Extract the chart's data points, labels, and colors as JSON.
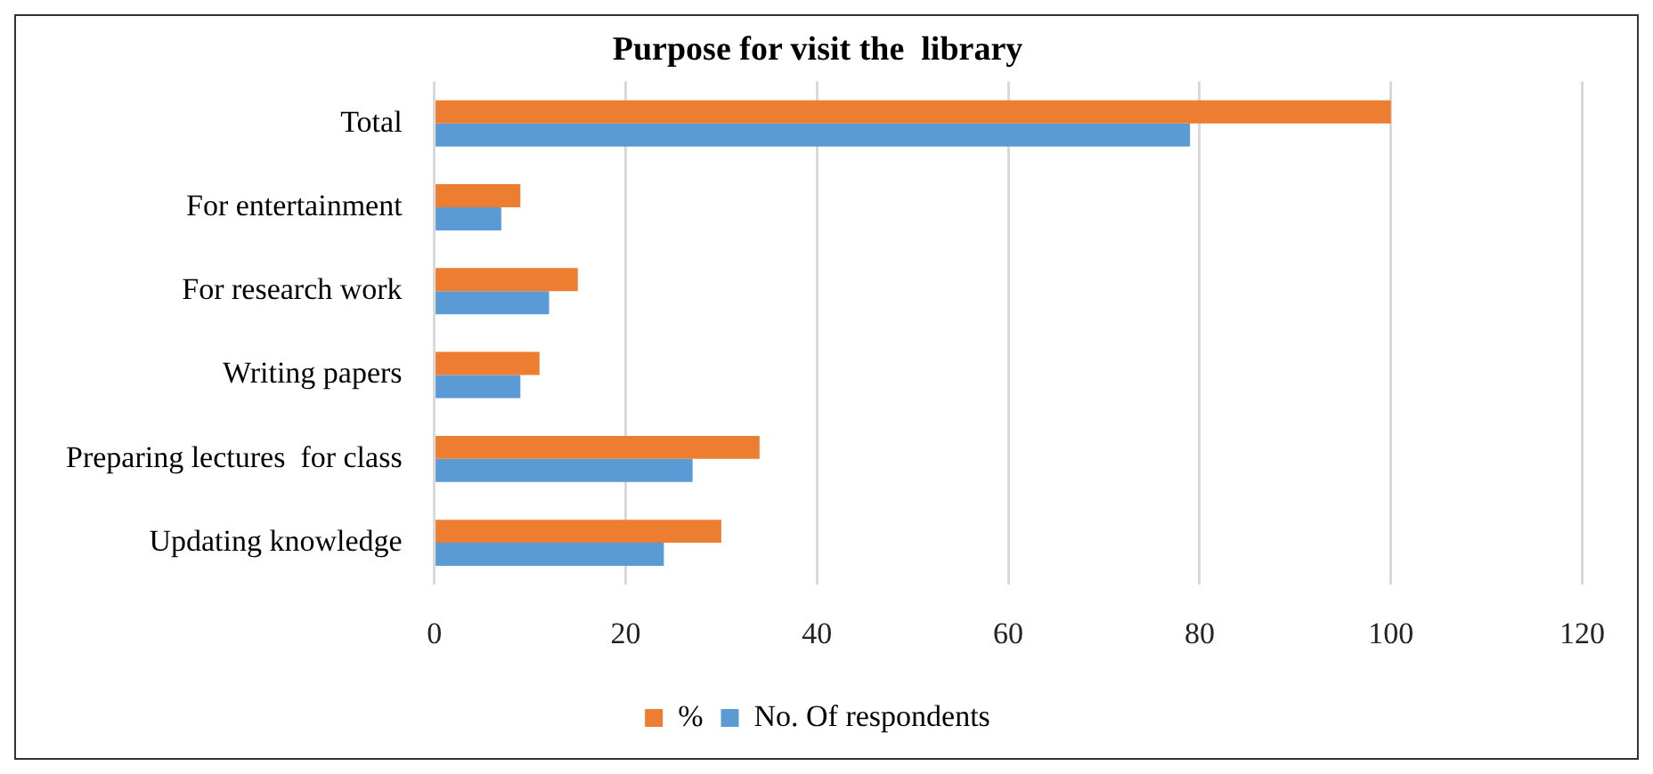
{
  "chart_data": {
    "type": "bar",
    "orientation": "horizontal",
    "title": "Purpose for visit the  library",
    "categories": [
      "Total",
      "For entertainment",
      "For research work",
      "Writing papers",
      "Preparing lectures  for class",
      "Updating knowledge"
    ],
    "series": [
      {
        "name": "%",
        "color": "#ed7d31",
        "values": [
          100,
          9,
          15,
          11,
          34,
          30
        ]
      },
      {
        "name": "No. Of respondents",
        "color": "#5b9bd5",
        "values": [
          79,
          7,
          12,
          9,
          27,
          24
        ]
      }
    ],
    "xlim": [
      0,
      120
    ],
    "xticks": [
      0,
      20,
      40,
      60,
      80,
      100,
      120
    ],
    "grid": "x",
    "legend": "bottom"
  }
}
